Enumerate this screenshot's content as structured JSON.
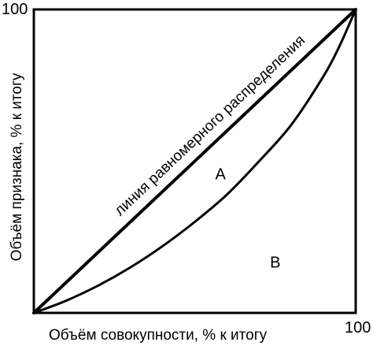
{
  "chart_data": {
    "type": "line",
    "title": "",
    "xlabel": "Объём совокупности, % к итогу",
    "ylabel": "Объём признака, % к итогу",
    "xlim": [
      0,
      100
    ],
    "ylim": [
      0,
      100
    ],
    "x_tick_labels": [
      "100"
    ],
    "y_tick_labels": [
      "100"
    ],
    "grid": false,
    "series": [
      {
        "key": "equality",
        "name": "линия равномерного распределения",
        "x": [
          0,
          100
        ],
        "y": [
          0,
          100
        ]
      },
      {
        "key": "lorenz",
        "x": [
          0,
          10,
          20,
          30,
          40,
          50,
          60,
          70,
          80,
          90,
          95,
          100
        ],
        "y": [
          0,
          4,
          9,
          15,
          22,
          30,
          39,
          50,
          62,
          78,
          88,
          100
        ]
      }
    ],
    "annotations": [
      {
        "key": "A",
        "text": "A",
        "x": 58,
        "y": 44
      },
      {
        "key": "B",
        "text": "B",
        "x": 75,
        "y": 15
      }
    ]
  }
}
